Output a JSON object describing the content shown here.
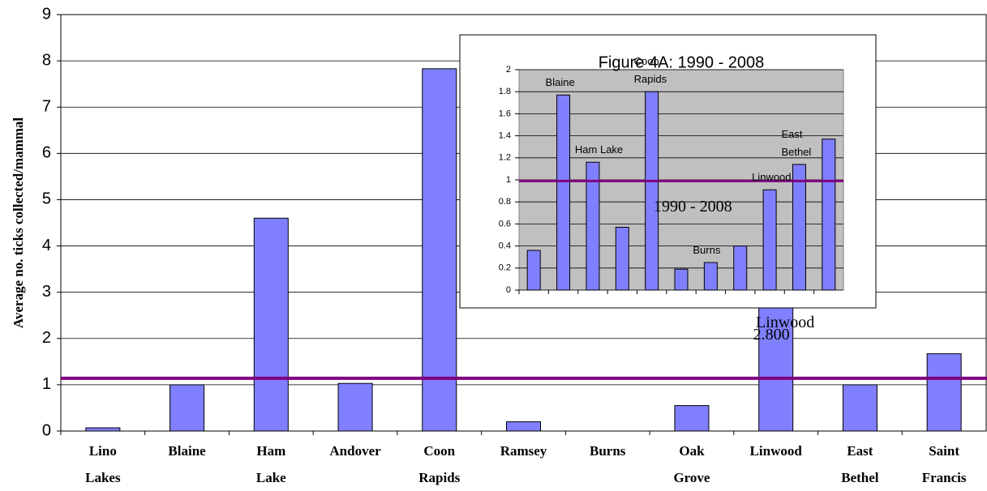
{
  "chart_data": [
    {
      "type": "bar",
      "y_label": "Average no. ticks collected/mammal",
      "categories": [
        "Lino\nLakes",
        "Blaine",
        "Ham\nLake",
        "Andover",
        "Coon\nRapids",
        "Ramsey",
        "Burns",
        "Oak\nGrove",
        "Linwood",
        "East\nBethel",
        "Saint\nFrancis"
      ],
      "values": [
        0.07,
        1.0,
        4.6,
        1.03,
        7.83,
        0.2,
        0,
        0.55,
        2.8,
        1.0,
        1.67
      ],
      "value_labels": [
        null,
        null,
        null,
        null,
        null,
        null,
        null,
        null,
        "2.800",
        null,
        null
      ],
      "annotation": "Linwood",
      "color": "#8080ff",
      "ylim": [
        0,
        9
      ],
      "yticks": [
        0,
        1,
        2,
        3,
        4,
        5,
        6,
        7,
        8,
        9
      ],
      "grid": true,
      "reference_line": {
        "value": 1.14,
        "color": "#800080"
      }
    },
    {
      "type": "bar",
      "title": "Figure 4A:  1990 - 2008",
      "categories": [
        null,
        null,
        null,
        null,
        null,
        null,
        null,
        null,
        null,
        null,
        null
      ],
      "values": [
        0.36,
        1.77,
        1.16,
        0.57,
        1.8,
        0.19,
        0.25,
        0.4,
        0.91,
        1.14,
        1.37
      ],
      "bar_labels": [
        null,
        "Blaine",
        "Ham Lake",
        null,
        "Coon\nRapids",
        null,
        "Burns",
        null,
        "Linwood",
        "East\nBethel",
        null
      ],
      "annotation": "1990 - 2008",
      "color": "#8080ff",
      "ylim": [
        0,
        2
      ],
      "yticks": [
        0,
        {
          "value": 0.2,
          "label": "0.2"
        },
        {
          "value": 0.4,
          "label": "0.4"
        },
        {
          "value": 0.6,
          "label": "0.6"
        },
        {
          "value": 0.8,
          "label": "0.8"
        },
        1,
        {
          "value": 1.2,
          "label": "1.2"
        },
        {
          "value": 1.4,
          "label": "1.4"
        },
        {
          "value": 1.6,
          "label": "1.6"
        },
        {
          "value": 1.8,
          "label": "1.8"
        },
        2
      ],
      "grid": true,
      "reference_line": {
        "value": 0.99,
        "color": "#800080"
      }
    }
  ]
}
